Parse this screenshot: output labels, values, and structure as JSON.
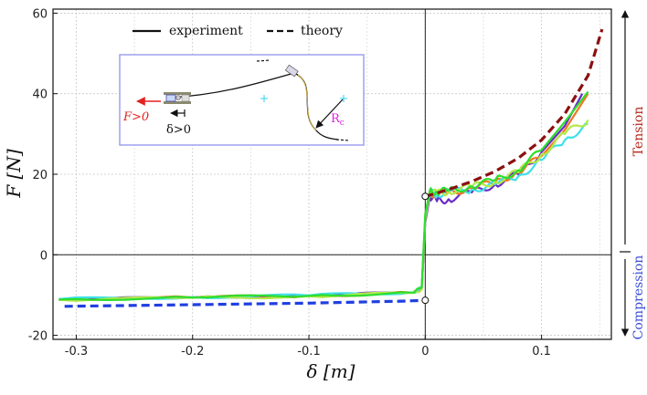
{
  "chart_data": {
    "type": "line",
    "title": "",
    "xlabel": "δ [m]",
    "ylabel": "F [N]",
    "xlim": [
      -0.32,
      0.16
    ],
    "ylim": [
      -21,
      61
    ],
    "xticks": [
      -0.3,
      -0.2,
      -0.1,
      0,
      0.1
    ],
    "xtick_labels": [
      "-0.3",
      "-0.2",
      "-0.1",
      "0",
      "0.1"
    ],
    "yticks": [
      -20,
      0,
      20,
      40,
      60
    ],
    "ytick_labels": [
      "-20",
      "0",
      "20",
      "40",
      "60"
    ],
    "grid": true,
    "legend": {
      "placement": "top-left",
      "entries": [
        {
          "label": "experiment",
          "style": "solid",
          "color": "#000000"
        },
        {
          "label": "theory",
          "style": "dashed",
          "color": "#000000"
        }
      ]
    },
    "side_labels": {
      "tension": {
        "text": "Tension",
        "color": "#b5271b"
      },
      "compression": {
        "text": "Compression",
        "color": "#3a4fd8"
      }
    },
    "inset": {
      "force_label": "F>0",
      "displacement_label": "δ>0",
      "radius_label": "R",
      "radius_subscript": "c"
    },
    "series": [
      {
        "name": "theory (compression)",
        "style": "dashed",
        "color": "#1f3fe0",
        "x": [
          -0.31,
          -0.2,
          -0.1,
          -0.02,
          0
        ],
        "y": [
          -12.8,
          -12.4,
          -12.0,
          -11.5,
          -11.3
        ]
      },
      {
        "name": "theory (tension)",
        "style": "dashed",
        "color": "#8b1010",
        "x": [
          0,
          0.02,
          0.04,
          0.06,
          0.08,
          0.1,
          0.12,
          0.14,
          0.152
        ],
        "y": [
          14.5,
          16.2,
          18.2,
          20.7,
          24.0,
          28.5,
          35.0,
          44.5,
          56.0
        ]
      },
      {
        "name": "experiment (purple)",
        "style": "solid",
        "color": "#6a2bc4",
        "x": [
          -0.315,
          -0.2,
          -0.1,
          -0.01,
          -0.003,
          0,
          0.004,
          0.01,
          0.02,
          0.04,
          0.06,
          0.08,
          0.1,
          0.12,
          0.135
        ],
        "y": [
          -11.2,
          -10.6,
          -10.2,
          -9.4,
          -8.5,
          8.0,
          14.5,
          13.3,
          13.8,
          15.5,
          17.5,
          20.0,
          25.5,
          32.0,
          40.0
        ]
      },
      {
        "name": "experiment (orange)",
        "style": "solid",
        "color": "#f07820",
        "x": [
          -0.315,
          -0.2,
          -0.1,
          -0.01,
          -0.003,
          0,
          0.004,
          0.01,
          0.02,
          0.04,
          0.06,
          0.08,
          0.1,
          0.12,
          0.14
        ],
        "y": [
          -11.0,
          -10.6,
          -10.2,
          -9.4,
          -8.3,
          8.5,
          15.2,
          15.0,
          15.5,
          16.5,
          18.0,
          20.5,
          24.5,
          31.0,
          40.0
        ]
      },
      {
        "name": "experiment (cyan)",
        "style": "solid",
        "color": "#3fe0e8",
        "x": [
          -0.315,
          -0.2,
          -0.1,
          -0.01,
          -0.003,
          0,
          0.004,
          0.01,
          0.02,
          0.04,
          0.06,
          0.08,
          0.1,
          0.12,
          0.14
        ],
        "y": [
          -11.0,
          -10.5,
          -10.1,
          -9.3,
          -8.2,
          9.0,
          15.5,
          15.0,
          15.6,
          16.2,
          17.5,
          19.5,
          23.5,
          28.5,
          32.5
        ]
      },
      {
        "name": "experiment (yellow-green)",
        "style": "solid",
        "color": "#b4e84a",
        "x": [
          -0.315,
          -0.2,
          -0.1,
          -0.01,
          -0.003,
          0,
          0.004,
          0.01,
          0.02,
          0.04,
          0.06,
          0.08,
          0.1,
          0.12,
          0.14
        ],
        "y": [
          -11.2,
          -10.7,
          -10.3,
          -9.5,
          -8.6,
          9.5,
          15.8,
          15.2,
          15.8,
          16.8,
          18.2,
          20.5,
          25.0,
          30.0,
          33.5
        ]
      },
      {
        "name": "experiment (green)",
        "style": "solid",
        "color": "#2ede2e",
        "x": [
          -0.315,
          -0.2,
          -0.1,
          -0.01,
          -0.003,
          0,
          0.004,
          0.01,
          0.02,
          0.04,
          0.06,
          0.08,
          0.1,
          0.12,
          0.14
        ],
        "y": [
          -11.1,
          -10.6,
          -10.2,
          -9.4,
          -8.0,
          10.0,
          16.0,
          15.5,
          16.0,
          17.0,
          18.5,
          21.0,
          26.0,
          33.0,
          40.5
        ]
      }
    ],
    "markers": [
      {
        "x": 0,
        "y": 14.5,
        "shape": "open-circle"
      },
      {
        "x": 0,
        "y": -11.3,
        "shape": "open-circle"
      }
    ]
  }
}
